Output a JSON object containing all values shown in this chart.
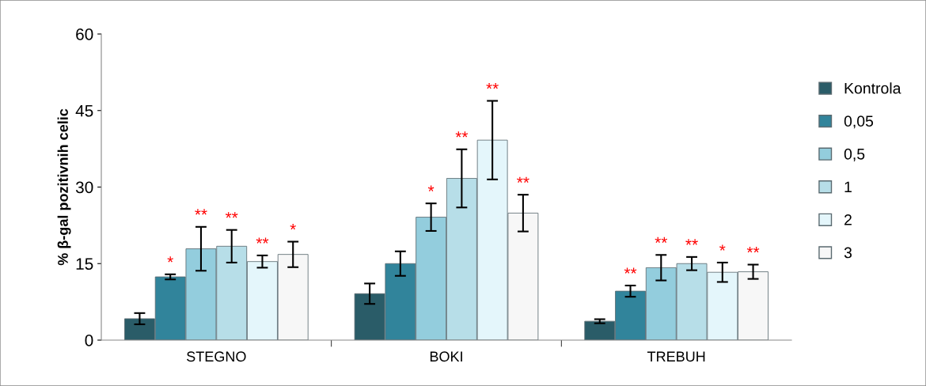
{
  "chart_data": {
    "type": "bar",
    "ylabel": "% β-gal pozitivnih celic",
    "categories": [
      "STEGNO",
      "BOKI",
      "TREBUH"
    ],
    "ylim": [
      0,
      60
    ],
    "yticks": [
      0,
      15,
      30,
      45,
      60
    ],
    "grid": false,
    "legend": "right",
    "series": [
      {
        "name": "Kontrola",
        "color": "#2a5c68",
        "values": [
          4.2,
          9.1,
          3.7
        ],
        "errors": [
          1.1,
          2.0,
          0.4
        ],
        "value_labels": [
          null,
          null,
          null
        ]
      },
      {
        "name": "0,05",
        "color": "#31849b",
        "values": [
          12.4,
          15.0,
          9.6
        ],
        "errors": [
          0.5,
          2.4,
          1.1
        ],
        "value_labels": [
          "*",
          null,
          "**"
        ]
      },
      {
        "name": "0,5",
        "color": "#93cddd",
        "values": [
          17.9,
          24.1,
          14.2
        ],
        "errors": [
          4.3,
          2.7,
          2.5
        ],
        "value_labels": [
          "**",
          "*",
          "**"
        ]
      },
      {
        "name": "1",
        "color": "#b7dee8",
        "values": [
          18.4,
          31.7,
          15.0
        ],
        "errors": [
          3.2,
          5.7,
          1.3
        ],
        "value_labels": [
          "**",
          "**",
          "**"
        ]
      },
      {
        "name": "2",
        "color": "#e4f6fb",
        "values": [
          15.4,
          39.2,
          13.3
        ],
        "errors": [
          1.2,
          7.7,
          1.9
        ],
        "value_labels": [
          "**",
          "**",
          "*"
        ]
      },
      {
        "name": "3",
        "color": "#f7f7f7",
        "values": [
          16.8,
          24.9,
          13.4
        ],
        "errors": [
          2.5,
          3.6,
          1.4
        ],
        "value_labels": [
          "*",
          "**",
          "**"
        ]
      }
    ]
  }
}
